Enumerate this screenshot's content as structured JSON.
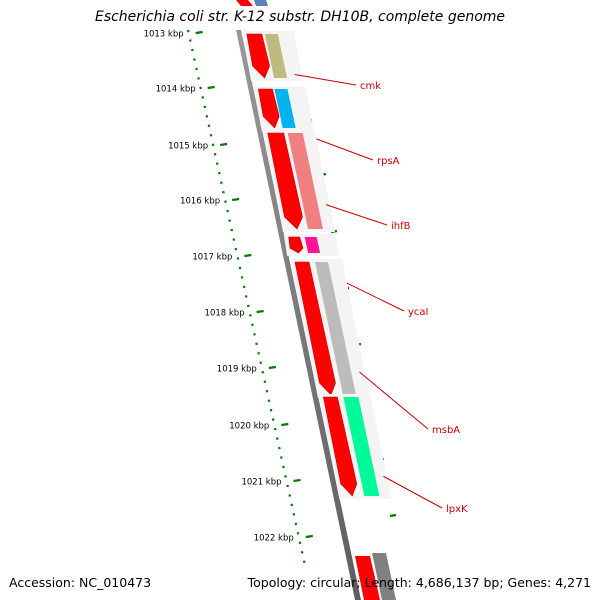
{
  "title": "Escherichia coli str. K-12 substr. DH10B, complete genome",
  "footer": {
    "accession": "Accession: NC_010473",
    "stats": "Topology: circular; Length: 4,686,137 bp; Genes: 4,271"
  },
  "scale_ticks": [
    {
      "label": "1013 kbp"
    },
    {
      "label": "1014 kbp"
    },
    {
      "label": "1015 kbp"
    },
    {
      "label": "1016 kbp"
    },
    {
      "label": "1017 kbp"
    },
    {
      "label": "1018 kbp"
    },
    {
      "label": "1019 kbp"
    },
    {
      "label": "1020 kbp"
    },
    {
      "label": "1021 kbp"
    },
    {
      "label": "1022 kbp"
    }
  ],
  "genes": [
    {
      "label": "cmk",
      "color": "#c0bb7c"
    },
    {
      "label": "rpsA",
      "color": "#00b4f0"
    },
    {
      "label": "ihfB",
      "color": "#f08080"
    },
    {
      "label": "ycaI",
      "color": "#ff1493"
    },
    {
      "label": "msbA",
      "color": "#bcbcbc"
    },
    {
      "label": "lpxK",
      "color": "#00fa9a"
    }
  ],
  "colors": {
    "cds": "#ff0000",
    "scale": "#007a00",
    "label": "#cc0000",
    "backbone": "#808080"
  }
}
